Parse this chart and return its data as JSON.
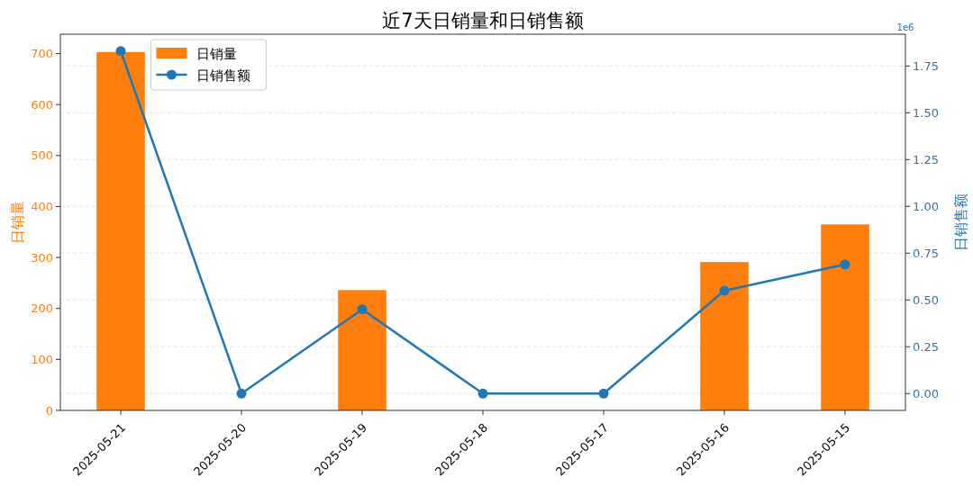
{
  "chart_data": {
    "type": "bar",
    "title": "近7天日销量和日销售额",
    "categories": [
      "2025-05-21",
      "2025-05-20",
      "2025-05-19",
      "2025-05-18",
      "2025-05-17",
      "2025-05-16",
      "2025-05-15"
    ],
    "series": [
      {
        "name": "日销量",
        "color": "#ff7f0e",
        "values": [
          703,
          0,
          236,
          0,
          0,
          291,
          365
        ]
      },
      {
        "name": "日销售额",
        "type": "line",
        "axis": "y2",
        "color": "#1f77b4",
        "marker": "circle",
        "values": [
          1.83,
          0,
          0.45,
          0,
          0,
          0.55,
          0.69
        ]
      }
    ],
    "ylabel": "日销量",
    "y2label": "日销售额",
    "ylim": [
      0,
      738
    ],
    "yticks": [
      0,
      100,
      200,
      300,
      400,
      500,
      600,
      700
    ],
    "y2lim": [
      -0.09,
      1.92
    ],
    "y2ticks": [
      {
        "value": 0,
        "label": "0.00"
      },
      {
        "value": 0.25,
        "label": "0.25"
      },
      {
        "value": 0.5,
        "label": "0.50"
      },
      {
        "value": 0.75,
        "label": "0.75"
      },
      {
        "value": 1,
        "label": "1.00"
      },
      {
        "value": 1.25,
        "label": "1.25"
      },
      {
        "value": 1.5,
        "label": "1.50"
      },
      {
        "value": 1.75,
        "label": "1.75"
      }
    ],
    "annotations": [
      "1e6"
    ],
    "grid": "y2",
    "legend": "top left"
  }
}
